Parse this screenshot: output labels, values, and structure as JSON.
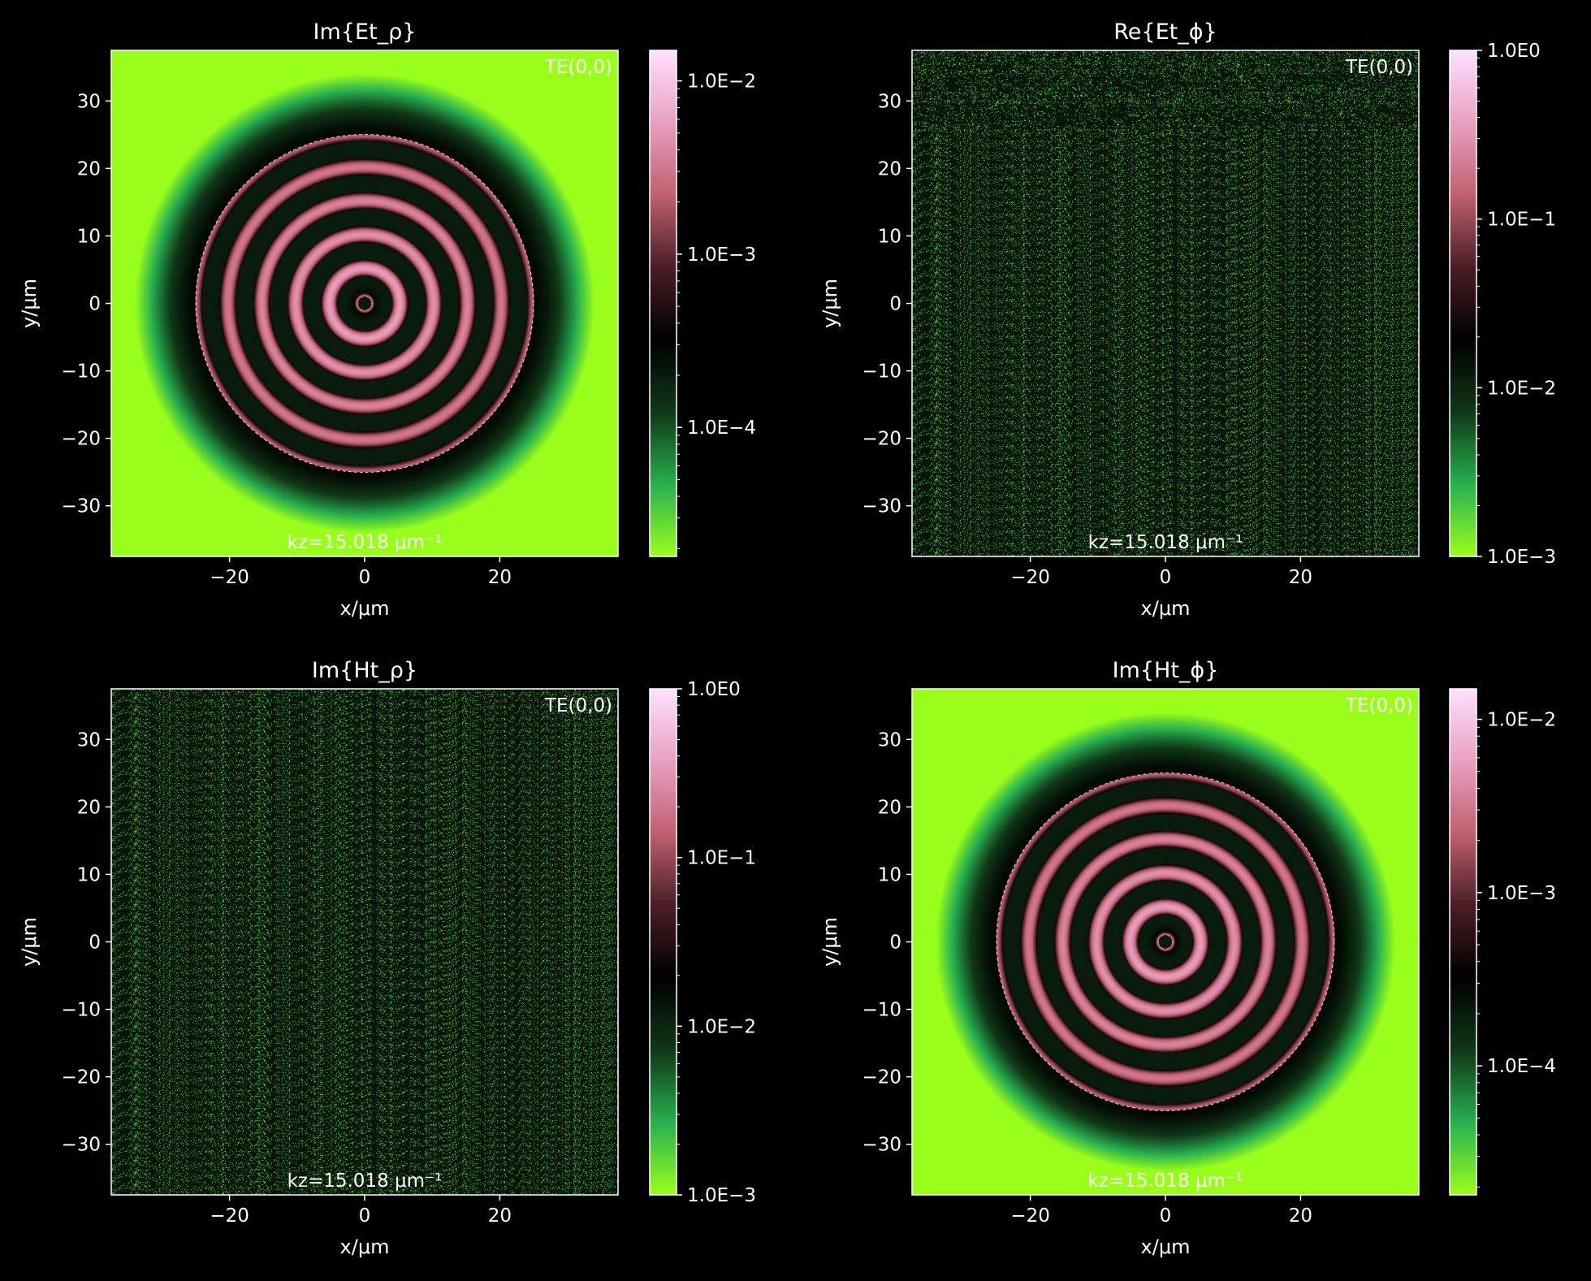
{
  "colors": {
    "background": "#000000",
    "foreground": "#ffffff",
    "cmap": [
      "#99ff1a",
      "#28b050",
      "#103818",
      "#000000",
      "#4a1e24",
      "#c06070",
      "#e8a0c0",
      "#ffe0ff"
    ]
  },
  "chart_data": [
    {
      "type": "heatmap",
      "title": "Im{Et_ρ}",
      "xlabel": "x/μm",
      "ylabel": "y/μm",
      "xlim": [
        -37.5,
        37.5
      ],
      "ylim": [
        -37.5,
        37.5
      ],
      "xticks": [
        -20,
        0,
        20
      ],
      "xtick_labels": [
        "−20",
        "0",
        "20"
      ],
      "yticks": [
        30,
        20,
        10,
        0,
        -10,
        -20,
        -30
      ],
      "ytick_labels": [
        "30",
        "20",
        "10",
        "0",
        "−10",
        "−20",
        "−30"
      ],
      "field": "rings",
      "core_radius": 25,
      "mode_label": "TE(0,0)",
      "kz_label": "kz=15.018 μm⁻¹",
      "colorbar": {
        "scale": "log",
        "range": [
          1.8e-05,
          0.015
        ],
        "ticks": [
          0.01,
          0.001,
          0.0001
        ],
        "tick_labels": [
          "1.0E−2",
          "1.0E−3",
          "1.0E−4"
        ]
      }
    },
    {
      "type": "heatmap",
      "title": "Re{Et_ϕ}",
      "xlabel": "x/μm",
      "ylabel": "y/μm",
      "xlim": [
        -37.5,
        37.5
      ],
      "ylim": [
        -37.5,
        37.5
      ],
      "xticks": [
        -20,
        0,
        20
      ],
      "xtick_labels": [
        "−20",
        "0",
        "20"
      ],
      "yticks": [
        30,
        20,
        10,
        0,
        -10,
        -20,
        -30
      ],
      "ytick_labels": [
        "30",
        "20",
        "10",
        "0",
        "−10",
        "−20",
        "−30"
      ],
      "field": "noise",
      "core_radius": 25,
      "mode_label": "TE(0,0)",
      "kz_label": "kz=15.018 μm⁻¹",
      "colorbar": {
        "scale": "log",
        "range": [
          0.001,
          1
        ],
        "ticks": [
          1,
          0.1,
          0.01,
          0.001
        ],
        "tick_labels": [
          "1.0E0",
          "1.0E−1",
          "1.0E−2",
          "1.0E−3"
        ]
      }
    },
    {
      "type": "heatmap",
      "title": "Im{Ht_ρ}",
      "xlabel": "x/μm",
      "ylabel": "y/μm",
      "xlim": [
        -37.5,
        37.5
      ],
      "ylim": [
        -37.5,
        37.5
      ],
      "xticks": [
        -20,
        0,
        20
      ],
      "xtick_labels": [
        "−20",
        "0",
        "20"
      ],
      "yticks": [
        30,
        20,
        10,
        0,
        -10,
        -20,
        -30
      ],
      "ytick_labels": [
        "30",
        "20",
        "10",
        "0",
        "−10",
        "−20",
        "−30"
      ],
      "field": "noise",
      "core_radius": 25,
      "mode_label": "TE(0,0)",
      "kz_label": "kz=15.018 μm⁻¹",
      "colorbar": {
        "scale": "log",
        "range": [
          0.001,
          1
        ],
        "ticks": [
          1,
          0.1,
          0.01,
          0.001
        ],
        "tick_labels": [
          "1.0E0",
          "1.0E−1",
          "1.0E−2",
          "1.0E−3"
        ]
      }
    },
    {
      "type": "heatmap",
      "title": "Im{Ht_ϕ}",
      "xlabel": "x/μm",
      "ylabel": "y/μm",
      "xlim": [
        -37.5,
        37.5
      ],
      "ylim": [
        -37.5,
        37.5
      ],
      "xticks": [
        -20,
        0,
        20
      ],
      "xtick_labels": [
        "−20",
        "0",
        "20"
      ],
      "yticks": [
        30,
        20,
        10,
        0,
        -10,
        -20,
        -30
      ],
      "ytick_labels": [
        "30",
        "20",
        "10",
        "0",
        "−10",
        "−20",
        "−30"
      ],
      "field": "rings",
      "core_radius": 25,
      "mode_label": "TE(0,0)",
      "kz_label": "kz=15.018 μm⁻¹",
      "colorbar": {
        "scale": "log",
        "range": [
          1.8e-05,
          0.015
        ],
        "ticks": [
          0.01,
          0.001,
          0.0001
        ],
        "tick_labels": [
          "1.0E−2",
          "1.0E−3",
          "1.0E−4"
        ]
      }
    }
  ]
}
